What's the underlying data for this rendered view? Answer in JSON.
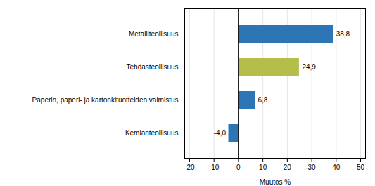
{
  "chart_data": {
    "type": "bar",
    "orientation": "horizontal",
    "categories": [
      "Metalliteollisuus",
      "Tehdasteollisuus",
      "Paperin, paperi- ja kartonkituotteiden valmistus",
      "Kemianteollisuus"
    ],
    "values": [
      38.8,
      24.9,
      6.8,
      -4.0
    ],
    "value_labels": [
      "38,8",
      "24,9",
      "6,8",
      "-4,0"
    ],
    "colors": [
      "#2e75b6",
      "#b5bd4b",
      "#2e75b6",
      "#2e75b6"
    ],
    "xlabel": "Muutos %",
    "xlim": [
      -22,
      52
    ],
    "xticks": [
      -20,
      -10,
      0,
      10,
      20,
      30,
      40,
      50
    ],
    "grid": true,
    "data_labels": true
  }
}
